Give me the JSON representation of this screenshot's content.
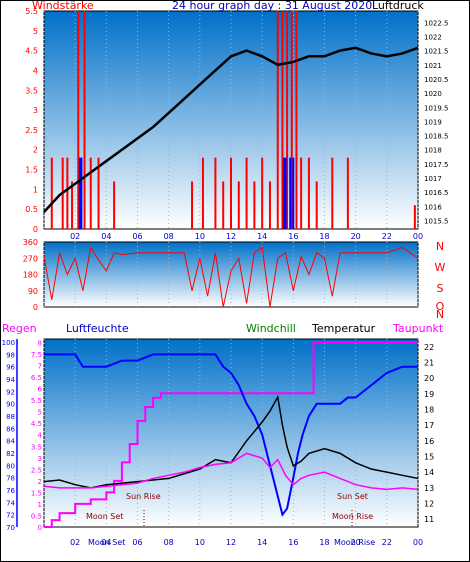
{
  "chart_data": [
    {
      "type": "line",
      "title": "24 hour graph day : 31 August 2020",
      "left_axis_label": "Windstärke",
      "right_axis_label": "Luftdruck",
      "left_ticks": [
        "5.5",
        "5",
        "4.5",
        "4",
        "3.5",
        "3",
        "2.5",
        "2",
        "1.5",
        "1",
        "0.5",
        "0"
      ],
      "right_ticks": [
        "1022.5",
        "1022",
        "1021.5",
        "1021",
        "1020.5",
        "1020",
        "1019.5",
        "1019",
        "1018.5",
        "1018",
        "1017.5",
        "1017",
        "1016.5",
        "1016",
        "1015.5"
      ],
      "x_ticks": [
        "02",
        "04",
        "06",
        "08",
        "10",
        "12",
        "14",
        "16",
        "18",
        "20",
        "22",
        "00"
      ],
      "ylim_left": [
        0,
        5.5
      ],
      "ylim_right": [
        1015.2,
        1022.9
      ],
      "series": [
        {
          "name": "Luftdruck",
          "color": "#000000",
          "x": [
            0,
            1,
            2,
            3,
            4,
            5,
            6,
            7,
            8,
            9,
            10,
            11,
            12,
            13,
            14,
            15,
            16,
            17,
            18,
            19,
            20,
            21,
            22,
            23,
            24
          ],
          "values": [
            1015.8,
            1016.4,
            1016.8,
            1017.2,
            1017.6,
            1018.0,
            1018.4,
            1018.8,
            1019.3,
            1019.8,
            1020.3,
            1020.8,
            1021.3,
            1021.5,
            1021.3,
            1021.0,
            1021.1,
            1021.3,
            1021.3,
            1021.5,
            1021.6,
            1021.4,
            1021.3,
            1021.4,
            1021.6
          ]
        },
        {
          "name": "Windstärke",
          "color": "#ff0000",
          "style": "bars",
          "x": [
            0.5,
            1.2,
            1.5,
            1.8,
            2.2,
            2.6,
            3.0,
            3.5,
            4.5,
            9.5,
            10.2,
            11.0,
            11.5,
            12.0,
            12.5,
            13.0,
            13.5,
            14.0,
            14.5,
            15.0,
            15.3,
            15.6,
            15.9,
            16.2,
            16.5,
            17.0,
            17.5,
            18.5,
            19.5,
            23.8
          ],
          "values": [
            1.8,
            1.8,
            1.8,
            1.2,
            5.5,
            5.5,
            1.8,
            1.8,
            1.2,
            1.2,
            1.8,
            1.8,
            1.2,
            1.8,
            1.2,
            1.8,
            1.2,
            1.8,
            1.2,
            5.5,
            5.5,
            5.5,
            5.5,
            5.5,
            1.8,
            1.8,
            1.2,
            1.8,
            1.8,
            0.6
          ]
        },
        {
          "name": "Wind gust",
          "color": "#0000ff",
          "style": "bars",
          "x": [
            2.3,
            2.4,
            15.4,
            15.5,
            15.8,
            16.0
          ],
          "values": [
            1.8,
            1.8,
            1.8,
            1.8,
            1.8,
            1.8
          ]
        }
      ]
    },
    {
      "type": "scatter",
      "left_ticks": [
        "360",
        "270",
        "180",
        "90",
        "0"
      ],
      "right_labels": [
        "N",
        "W",
        "S",
        "O",
        "N"
      ],
      "x_ticks": [
        "02",
        "04",
        "06",
        "08",
        "10",
        "12",
        "14",
        "16",
        "18",
        "20",
        "22",
        "00"
      ],
      "ylim": [
        0,
        360
      ],
      "series": [
        {
          "name": "Windrichtung",
          "color": "#ff0000",
          "x": [
            0.0,
            0.5,
            1.0,
            1.5,
            2.0,
            2.5,
            3.0,
            3.5,
            4.0,
            4.5,
            5.0,
            6.0,
            7.0,
            8.0,
            9.0,
            9.5,
            10.0,
            10.5,
            11.0,
            11.5,
            12.0,
            12.5,
            13.0,
            13.5,
            14.0,
            14.5,
            15.0,
            15.5,
            16.0,
            16.5,
            17.0,
            17.5,
            18.0,
            18.5,
            19.0,
            20.0,
            21.0,
            22.0,
            23.0,
            23.5,
            24.0
          ],
          "values": [
            280,
            40,
            300,
            180,
            270,
            90,
            330,
            260,
            200,
            300,
            290,
            300,
            300,
            300,
            300,
            90,
            270,
            60,
            300,
            0,
            200,
            270,
            20,
            300,
            330,
            0,
            270,
            300,
            90,
            280,
            180,
            300,
            270,
            60,
            300,
            300,
            300,
            300,
            330,
            300,
            270
          ]
        }
      ]
    },
    {
      "type": "line",
      "left_label": "Regen",
      "left_label2": "Luftfeuchte",
      "labels_top": [
        "Windchill",
        "Temperatur",
        "Taupunkt"
      ],
      "rain_ticks": [
        "8",
        "7.5",
        "7",
        "6.5",
        "6",
        "5.5",
        "5",
        "4.5",
        "4",
        "3.5",
        "3",
        "2.5",
        "2",
        "1.5",
        "1",
        "0.5",
        "0"
      ],
      "hum_ticks": [
        "100",
        "98",
        "96",
        "94",
        "92",
        "90",
        "88",
        "86",
        "84",
        "82",
        "80",
        "78",
        "76",
        "74",
        "72",
        "70"
      ],
      "temp_ticks": [
        "22",
        "21",
        "20",
        "19",
        "18",
        "17",
        "16",
        "15",
        "14",
        "13",
        "12",
        "11"
      ],
      "x_ticks": [
        "02",
        "04",
        "06",
        "08",
        "10",
        "12",
        "14",
        "16",
        "18",
        "20",
        "22",
        "00"
      ],
      "annotations": [
        "Sun Rise",
        "Sun Set",
        "Moon Set",
        "Moon Rise",
        "Moon Set",
        "Moon Rise"
      ],
      "ylim_temp": [
        10.5,
        22.5
      ],
      "ylim_hum": [
        70,
        100.5
      ],
      "series": [
        {
          "name": "Temperatur",
          "color": "#000000",
          "x": [
            0,
            1,
            2,
            3,
            4,
            5,
            6,
            7,
            8,
            9,
            10,
            11,
            12,
            13,
            13.5,
            14,
            14.5,
            15,
            15.3,
            15.6,
            16,
            16.5,
            17,
            18,
            19,
            20,
            21,
            22,
            23,
            24
          ],
          "values": [
            13.4,
            13.5,
            13.2,
            13.0,
            13.2,
            13.3,
            13.4,
            13.5,
            13.6,
            13.9,
            14.2,
            14.8,
            14.6,
            16.0,
            16.6,
            17.2,
            17.9,
            18.8,
            17.0,
            15.6,
            14.4,
            14.7,
            15.2,
            15.5,
            15.2,
            14.6,
            14.2,
            14.0,
            13.8,
            13.6
          ]
        },
        {
          "name": "Taupunkt",
          "color": "#ff00ff",
          "x": [
            0,
            1,
            2,
            3,
            4,
            5,
            6,
            7,
            8,
            9,
            10,
            11,
            12,
            13,
            14,
            14.5,
            15,
            15.5,
            16,
            16.5,
            17,
            18,
            19,
            20,
            21,
            22,
            23,
            24
          ],
          "values": [
            13.1,
            13.0,
            13.0,
            13.0,
            13.1,
            13.2,
            13.3,
            13.6,
            13.8,
            14.0,
            14.3,
            14.5,
            14.6,
            15.2,
            14.9,
            14.3,
            14.8,
            13.8,
            13.2,
            13.6,
            13.8,
            14.0,
            13.6,
            13.2,
            13.0,
            12.9,
            13.0,
            12.9
          ]
        },
        {
          "name": "Luftfeuchte",
          "color": "#0000ff",
          "x": [
            0,
            1,
            2,
            2.5,
            3,
            4,
            5,
            6,
            7,
            8,
            9,
            10,
            11,
            11.5,
            12,
            12.5,
            13,
            13.5,
            14,
            14.5,
            15,
            15.3,
            15.6,
            16,
            16.3,
            16.6,
            17,
            17.5,
            18,
            19,
            19.5,
            20,
            20.5,
            21,
            21.5,
            22,
            23,
            24
          ],
          "values": [
            98,
            98,
            98,
            96,
            96,
            96,
            97,
            97,
            98,
            98,
            98,
            98,
            98,
            96,
            95,
            93,
            90,
            88,
            85,
            80,
            75,
            72,
            73,
            78,
            82,
            85,
            88,
            90,
            90,
            90,
            91,
            91,
            92,
            93,
            94,
            95,
            96,
            96
          ]
        },
        {
          "name": "Regen",
          "color": "#ff00ff",
          "x": [
            0,
            0.5,
            1,
            2,
            3,
            4,
            4.5,
            5,
            5.5,
            6,
            6.5,
            7,
            7.5,
            8,
            9,
            10,
            11,
            12,
            13,
            14,
            15,
            16,
            17,
            17.3,
            18,
            20,
            22,
            24
          ],
          "values": [
            0,
            0.3,
            0.6,
            1.0,
            1.2,
            1.5,
            2.0,
            2.8,
            3.6,
            4.6,
            5.2,
            5.6,
            5.8,
            5.8,
            5.8,
            5.8,
            5.8,
            5.8,
            5.8,
            5.8,
            5.8,
            5.8,
            5.8,
            8.0,
            8.0,
            8.0,
            8.0,
            8.0
          ]
        }
      ]
    }
  ],
  "panel1": {
    "left_label": "Windstärke",
    "title": "24 hour graph day : 31 August 2020",
    "right_label": "Luftdruck"
  },
  "panel3": {
    "regen": "Regen",
    "luftfeuchte": "Luftfeuchte",
    "windchill": "Windchill",
    "temperatur": "Temperatur",
    "taupunkt": "Taupunkt",
    "sun_rise": "Sun Rise",
    "sun_set": "Sun Set",
    "moon_set_1": "Moon Set",
    "moon_rise_1": "Moon Rise",
    "moon_set_2": "Moon Set",
    "moon_rise_2": "Moon Rise"
  },
  "colors": {
    "sky_top": "#0070c8",
    "sky_bottom": "#ffffff",
    "wind": "#ff0000",
    "gust": "#0000ff",
    "pressure": "#000000",
    "humidity": "#0000ff",
    "dewpoint": "#ff00ff",
    "temperature": "#000000",
    "rain": "#ff00ff",
    "windchill": "#008000"
  }
}
